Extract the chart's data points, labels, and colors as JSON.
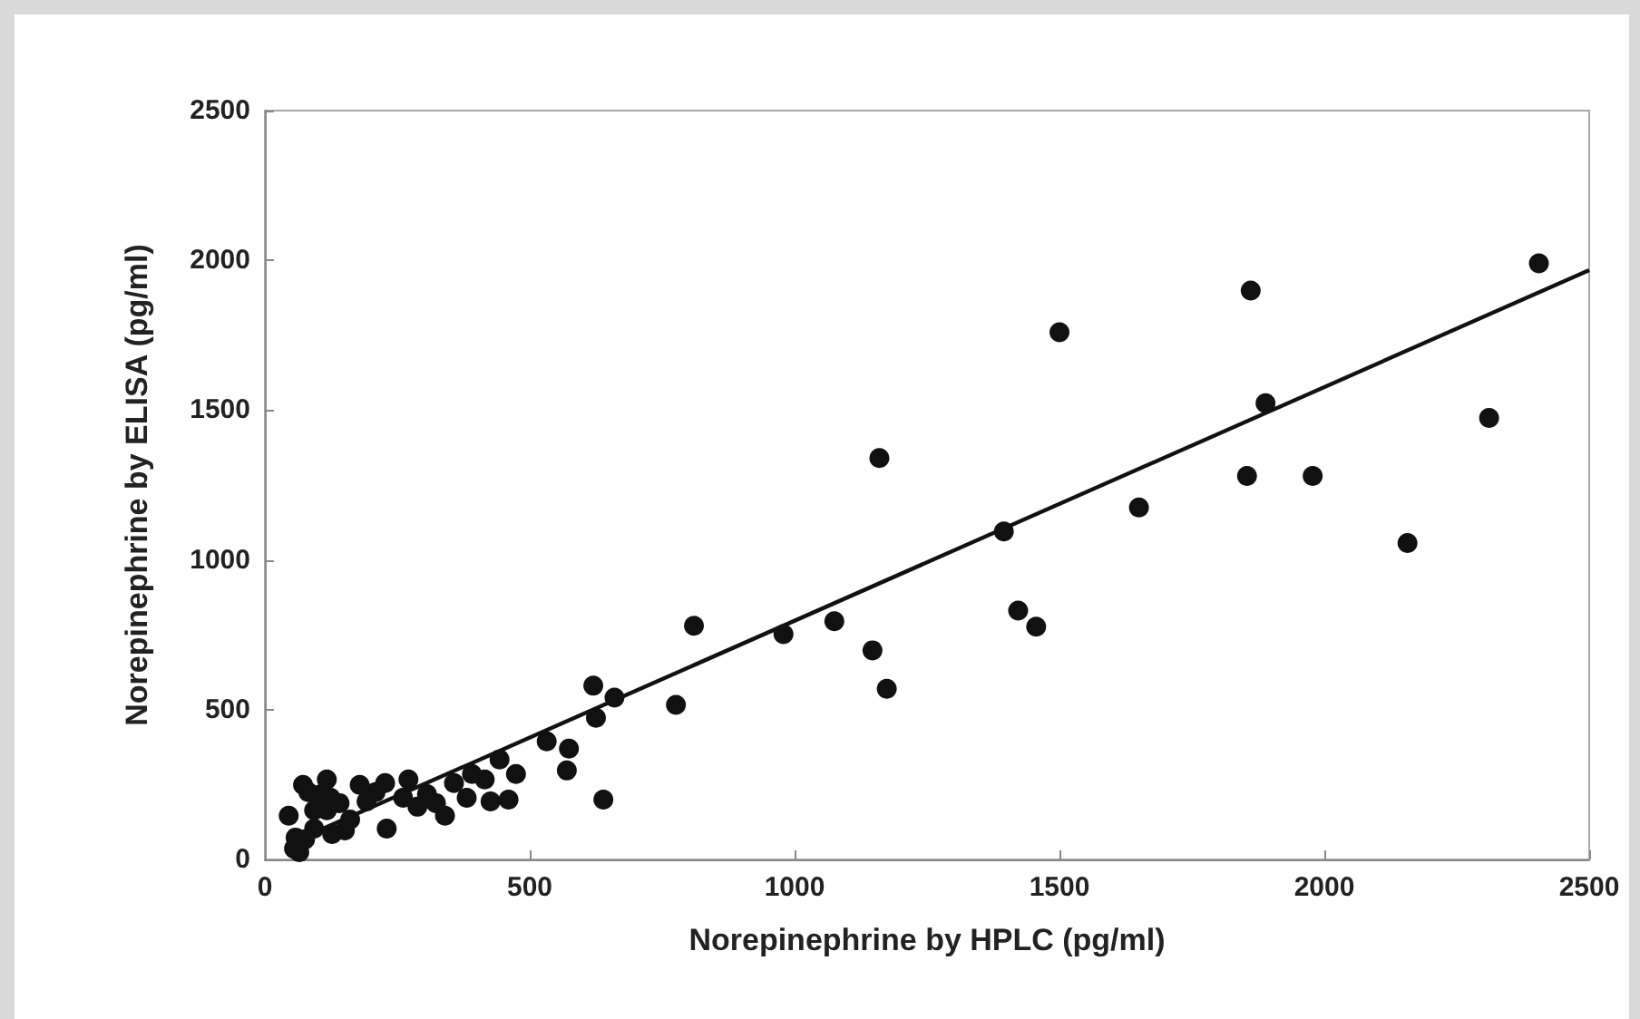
{
  "chart_data": {
    "type": "scatter",
    "xlabel": "Norepinephrine by HPLC (pg/ml)",
    "ylabel": "Norepinephrine by ELISA (pg/ml)",
    "xlim": [
      0,
      2500
    ],
    "xticks": [
      0,
      500,
      1000,
      1500,
      2000,
      2500
    ],
    "ylim": [
      0,
      2500
    ],
    "yticks": [
      0,
      500,
      1000,
      1500,
      2000,
      2500
    ],
    "grid": false,
    "marker": "circle",
    "series": [
      {
        "color": "#111111",
        "x": [
          2405,
          1861,
          1889,
          1854,
          1978,
          2311,
          2157,
          1160,
          1500,
          1395,
          1650,
          979,
          1075,
          1147,
          1174,
          1422,
          1456,
          776,
          810,
          639,
          625,
          574,
          570,
          532,
          474,
          460,
          443,
          426,
          415,
          391,
          381,
          357,
          340,
          323,
          306,
          288,
          271,
          261,
          230,
          227,
          209,
          192,
          179,
          161,
          151,
          127,
          117,
          117,
          106,
          93,
          82,
          72,
          93,
          76,
          58,
          55,
          45,
          65,
          124,
          141,
          660,
          620
        ],
        "values": [
          1990,
          1899,
          1523,
          1280,
          1280,
          1474,
          1056,
          1340,
          1760,
          1095,
          1175,
          752,
          795,
          698,
          570,
          831,
          777,
          516,
          780,
          200,
          473,
          370,
          297,
          394,
          285,
          200,
          334,
          194,
          267,
          285,
          206,
          255,
          146,
          188,
          218,
          176,
          267,
          206,
          103,
          255,
          225,
          194,
          249,
          133,
          97,
          85,
          267,
          164,
          218,
          164,
          225,
          249,
          103,
          67,
          73,
          36,
          146,
          24,
          206,
          188,
          540,
          580
        ]
      },
      {
        "type": "line",
        "color": "#111111",
        "marker": "none",
        "x": [
          100,
          2500
        ],
        "values": [
          95,
          1967
        ]
      }
    ]
  }
}
